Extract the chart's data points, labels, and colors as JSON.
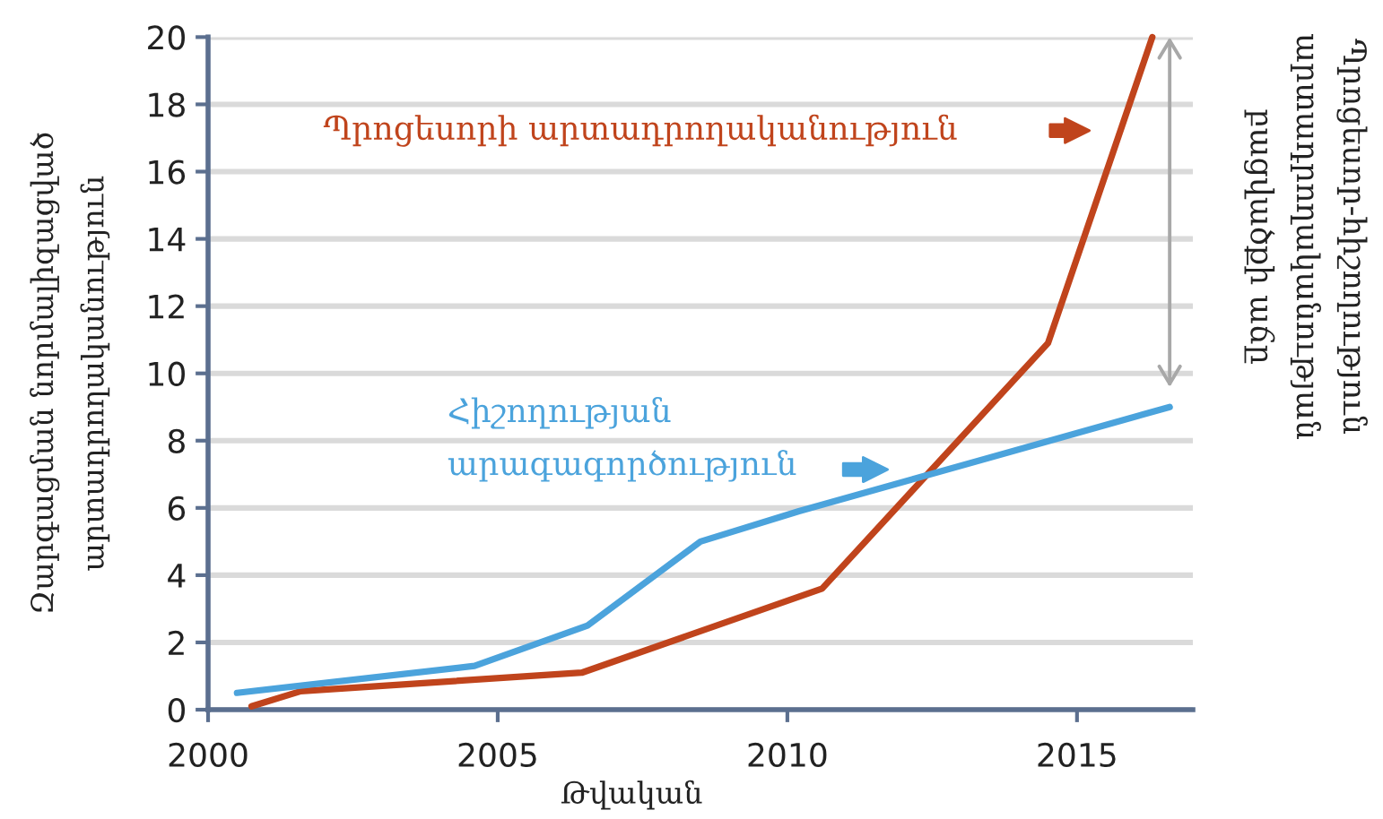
{
  "chart_data": {
    "type": "line",
    "xlabel": "Թվական",
    "ylabel": "Զարգացման նորմալիզացված\nարտադրողականություն",
    "annotations": [
      "Պրոցեսոր-հիշողություն\nարտադրողականության\nբացվածքի աճը"
    ],
    "series": [
      {
        "name": "Պրոցեսորի արտադրողականություն",
        "color": "#c0441c",
        "x": [
          2000.75,
          2001.6,
          2006.45,
          2010.6,
          2014.5,
          2016.3
        ],
        "values": [
          0.1,
          0.55,
          1.1,
          3.6,
          10.9,
          20
        ]
      },
      {
        "name": "Հիշողության\nարագագործություն",
        "color": "#4ba3dc",
        "x": [
          2000.5,
          2004.6,
          2006.55,
          2008.5,
          2010.2,
          2016.6
        ],
        "values": [
          0.5,
          1.3,
          2.5,
          5,
          5.9,
          9
        ]
      }
    ],
    "xlim": [
      2000,
      2017
    ],
    "ylim": [
      0,
      20
    ],
    "xticks": [
      2000,
      2005,
      2010,
      2015
    ],
    "yticks": [
      0,
      2,
      4,
      6,
      8,
      10,
      12,
      14,
      16,
      18,
      20
    ],
    "grid": "y",
    "marker": "none",
    "line_style": "solid"
  }
}
